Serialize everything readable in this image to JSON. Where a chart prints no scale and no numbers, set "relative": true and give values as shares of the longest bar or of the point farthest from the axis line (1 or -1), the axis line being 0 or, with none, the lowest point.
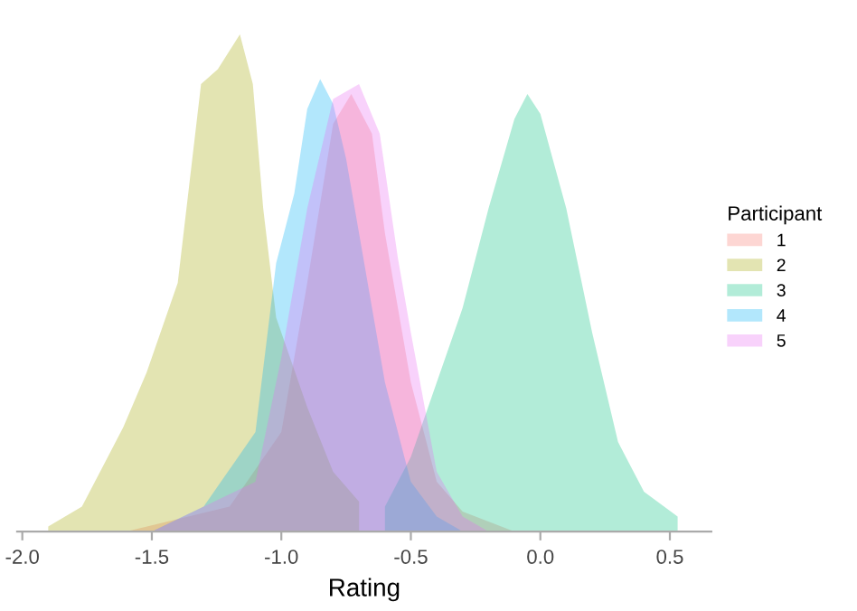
{
  "chart_data": {
    "type": "area",
    "relative": true,
    "xlabel": "Rating",
    "legend_title": "Participant",
    "legend": "right",
    "grid": false,
    "tick_labels": "x",
    "xlim": [
      -2.02,
      0.66
    ],
    "xticks": [
      {
        "value": -2.0,
        "label": "-2.0"
      },
      {
        "value": -1.5,
        "label": "-1.5"
      },
      {
        "value": -1.0,
        "label": "-1.0"
      },
      {
        "value": -0.5,
        "label": "-0.5"
      },
      {
        "value": 0.0,
        "label": "0.0"
      },
      {
        "value": 0.5,
        "label": "0.5"
      }
    ],
    "series": [
      {
        "name": "1",
        "color": "#f8766d",
        "x": [
          -1.6,
          -1.2,
          -1.0,
          -0.9,
          -0.8,
          -0.73,
          -0.65,
          -0.6,
          -0.55,
          -0.5,
          -0.4,
          -0.3,
          -0.1
        ],
        "values": [
          0,
          0.05,
          0.2,
          0.5,
          0.82,
          0.88,
          0.8,
          0.6,
          0.45,
          0.3,
          0.1,
          0.04,
          0
        ]
      },
      {
        "name": "2",
        "color": "#a3a500",
        "x": [
          -1.9,
          -1.77,
          -1.61,
          -1.52,
          -1.4,
          -1.31,
          -1.245,
          -1.16,
          -1.11,
          -1.07,
          -1.02,
          -0.9,
          -0.8,
          -0.7,
          -0.7
        ],
        "values": [
          0.01,
          0.05,
          0.21,
          0.32,
          0.5,
          0.9,
          0.93,
          1.0,
          0.9,
          0.65,
          0.43,
          0.25,
          0.12,
          0.06,
          0
        ]
      },
      {
        "name": "3",
        "color": "#00bf7d",
        "x": [
          -0.6,
          -0.6,
          -0.5,
          -0.4,
          -0.3,
          -0.2,
          -0.1,
          -0.05,
          0.0,
          0.1,
          0.2,
          0.3,
          0.4,
          0.53,
          0.53
        ],
        "values": [
          0,
          0.05,
          0.15,
          0.3,
          0.45,
          0.65,
          0.83,
          0.88,
          0.84,
          0.65,
          0.4,
          0.18,
          0.08,
          0.03,
          0
        ]
      },
      {
        "name": "4",
        "color": "#00b0f6",
        "x": [
          -1.5,
          -1.3,
          -1.1,
          -1.02,
          -0.95,
          -0.9,
          -0.85,
          -0.8,
          -0.75,
          -0.7,
          -0.6,
          -0.5,
          -0.4,
          -0.3
        ],
        "values": [
          0,
          0.05,
          0.2,
          0.54,
          0.68,
          0.85,
          0.91,
          0.86,
          0.75,
          0.6,
          0.3,
          0.1,
          0.03,
          0
        ]
      },
      {
        "name": "5",
        "color": "#e76bf3",
        "x": [
          -1.5,
          -1.1,
          -1.0,
          -0.9,
          -0.8,
          -0.7,
          -0.62,
          -0.55,
          -0.5,
          -0.4,
          -0.3,
          -0.2
        ],
        "values": [
          0,
          0.1,
          0.35,
          0.65,
          0.87,
          0.9,
          0.8,
          0.55,
          0.4,
          0.12,
          0.03,
          0
        ]
      }
    ]
  }
}
